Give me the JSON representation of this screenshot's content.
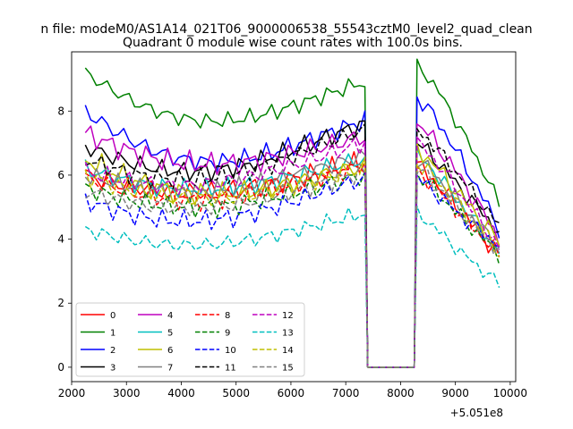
{
  "chart_data": {
    "type": "line",
    "suptitle": "n file: modeM0/AS1A14_021T06_9000006538_55543cztM0_level2_quad_clean",
    "title": "Quadrant 0 module wise count rates with 100.0s bins.",
    "xlabel": "",
    "ylabel": "",
    "x_offset_label": "+5.051e8",
    "xlim": [
      2000,
      10100
    ],
    "ylim": [
      -0.45,
      9.85
    ],
    "xticks": [
      2000,
      3000,
      4000,
      5000,
      6000,
      7000,
      8000,
      9000,
      10000
    ],
    "xtick_labels": [
      "2000",
      "3000",
      "4000",
      "5000",
      "6000",
      "7000",
      "8000",
      "9000",
      "10000"
    ],
    "yticks": [
      0,
      2,
      4,
      6,
      8
    ],
    "ytick_labels": [
      "0",
      "2",
      "4",
      "6",
      "8"
    ],
    "legend_location": "lower-left",
    "x_pre": {
      "start": 2250,
      "end": 7350,
      "step": 100
    },
    "gap_points": [
      [
        7400,
        0
      ],
      [
        7450,
        0
      ],
      [
        8250,
        0
      ]
    ],
    "x_post": {
      "start": 8300,
      "end": 9750,
      "step": 100
    },
    "series": [
      {
        "name": "0",
        "color": "#ff0000",
        "style": "solid",
        "pre_start": 6.0,
        "pre_end": 6.4,
        "dip": 0.9,
        "amp": 0.35,
        "post_start": 6.3,
        "post_end": 3.5,
        "ph": 0.3
      },
      {
        "name": "1",
        "color": "#008000",
        "style": "solid",
        "pre_start": 9.2,
        "pre_end": 8.9,
        "dip": 1.8,
        "amp": 0.25,
        "post_start": 9.4,
        "post_end": 5.1,
        "ph": 1.1
      },
      {
        "name": "2",
        "color": "#0000ff",
        "style": "solid",
        "pre_start": 8.0,
        "pre_end": 7.7,
        "dip": 1.9,
        "amp": 0.3,
        "post_start": 8.4,
        "post_end": 4.3,
        "ph": 2.2
      },
      {
        "name": "3",
        "color": "#000000",
        "style": "solid",
        "pre_start": 6.9,
        "pre_end": 7.6,
        "dip": 1.4,
        "amp": 0.3,
        "post_start": 7.0,
        "post_end": 4.2,
        "ph": 3.1
      },
      {
        "name": "4",
        "color": "#bf00bf",
        "style": "solid",
        "pre_start": 7.3,
        "pre_end": 7.2,
        "dip": 1.2,
        "amp": 0.35,
        "post_start": 7.6,
        "post_end": 4.0,
        "ph": 0.7
      },
      {
        "name": "5",
        "color": "#00bfbf",
        "style": "solid",
        "pre_start": 6.2,
        "pre_end": 6.5,
        "dip": 1.0,
        "amp": 0.3,
        "post_start": 6.6,
        "post_end": 3.6,
        "ph": 1.9
      },
      {
        "name": "6",
        "color": "#bfbf00",
        "style": "solid",
        "pre_start": 6.5,
        "pre_end": 6.3,
        "dip": 1.3,
        "amp": 0.35,
        "post_start": 6.8,
        "post_end": 3.9,
        "ph": 2.7
      },
      {
        "name": "7",
        "color": "#808080",
        "style": "solid",
        "pre_start": 6.0,
        "pre_end": 6.6,
        "dip": 1.0,
        "amp": 0.3,
        "post_start": 6.5,
        "post_end": 3.7,
        "ph": 4.0
      },
      {
        "name": "8",
        "color": "#ff0000",
        "style": "dashed",
        "pre_start": 5.9,
        "pre_end": 6.3,
        "dip": 1.1,
        "amp": 0.3,
        "post_start": 6.1,
        "post_end": 3.5,
        "ph": 0.5
      },
      {
        "name": "9",
        "color": "#008000",
        "style": "dashed",
        "pre_start": 5.6,
        "pre_end": 6.0,
        "dip": 1.0,
        "amp": 0.3,
        "post_start": 6.0,
        "post_end": 3.5,
        "ph": 1.5
      },
      {
        "name": "10",
        "color": "#0000ff",
        "style": "dashed",
        "pre_start": 5.2,
        "pre_end": 5.9,
        "dip": 1.2,
        "amp": 0.3,
        "post_start": 5.9,
        "post_end": 3.8,
        "ph": 2.5
      },
      {
        "name": "11",
        "color": "#000000",
        "style": "dashed",
        "pre_start": 6.5,
        "pre_end": 7.4,
        "dip": 1.3,
        "amp": 0.3,
        "post_start": 7.4,
        "post_end": 4.4,
        "ph": 3.5
      },
      {
        "name": "12",
        "color": "#bf00bf",
        "style": "dashed",
        "pre_start": 6.1,
        "pre_end": 7.0,
        "dip": 1.0,
        "amp": 0.3,
        "post_start": 7.0,
        "post_end": 3.7,
        "ph": 0.9
      },
      {
        "name": "13",
        "color": "#00bfbf",
        "style": "dashed",
        "pre_start": 4.3,
        "pre_end": 4.8,
        "dip": 0.9,
        "amp": 0.25,
        "post_start": 4.8,
        "post_end": 2.6,
        "ph": 1.7
      },
      {
        "name": "14",
        "color": "#bfbf00",
        "style": "dashed",
        "pre_start": 6.0,
        "pre_end": 6.2,
        "dip": 1.1,
        "amp": 0.3,
        "post_start": 6.4,
        "post_end": 3.6,
        "ph": 2.9
      },
      {
        "name": "15",
        "color": "#808080",
        "style": "dashed",
        "pre_start": 5.5,
        "pre_end": 6.1,
        "dip": 1.0,
        "amp": 0.3,
        "post_start": 6.2,
        "post_end": 3.6,
        "ph": 3.8
      }
    ]
  }
}
